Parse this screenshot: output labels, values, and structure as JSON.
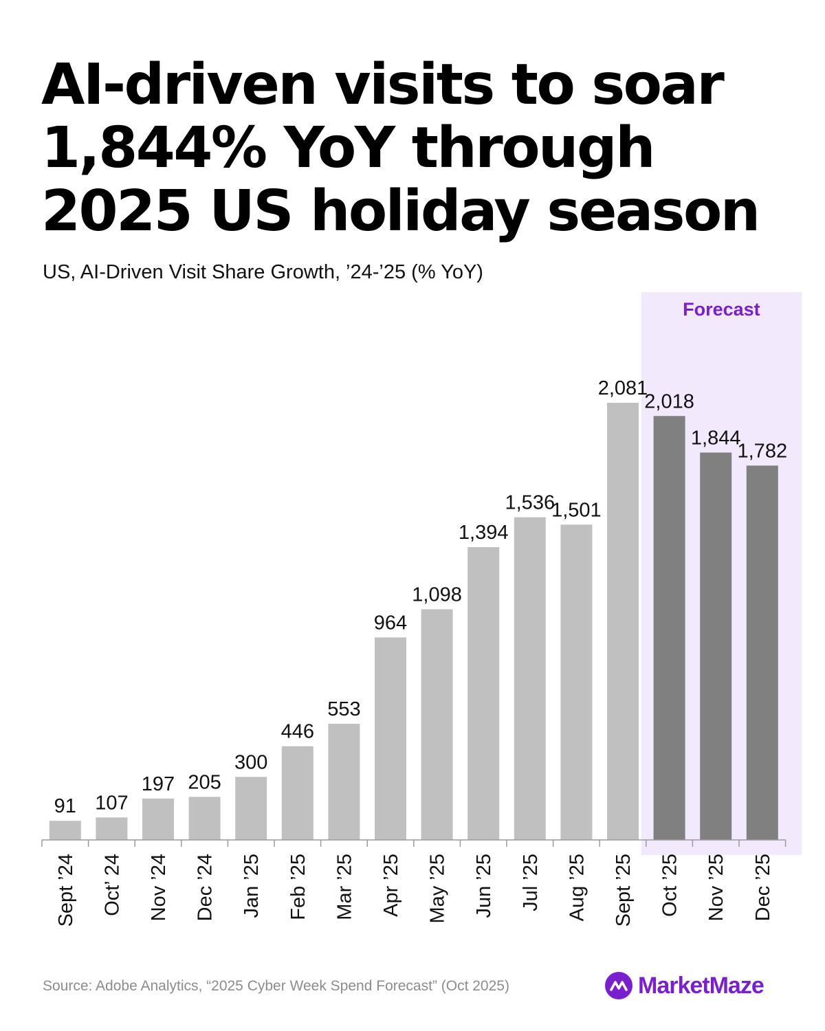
{
  "title_lines": [
    "AI-driven visits to soar",
    "1,844% YoY through",
    "2025 US holiday season"
  ],
  "subtitle": "US, AI-Driven Visit Share Growth, ’24-’25 (% YoY)",
  "source": "Source: Adobe Analytics, “2025 Cyber Week Spend Forecast” (Oct 2025)",
  "brand": {
    "name": "MarketMaze",
    "icon": "marketmaze-logo-icon"
  },
  "colors": {
    "actual_bar": "#c0c0c0",
    "forecast_bar": "#808080",
    "forecast_band": "#f2eafc",
    "forecast_label": "#7a1fd0",
    "brand": "#7a1fd0",
    "source_text": "#8c8c8c"
  },
  "chart_data": {
    "type": "bar",
    "categories": [
      "Sept ’24",
      "Oct’ 24",
      "Nov ’24",
      "Dec ’24",
      "Jan ’25",
      "Feb ’25",
      "Mar ’25",
      "Apr ’25",
      "May ’25",
      "Jun ’25",
      "Jul ’25",
      "Aug ’25",
      "Sept ’25",
      "Oct ’25",
      "Nov ’25",
      "Dec ’25"
    ],
    "values": [
      91,
      107,
      197,
      205,
      300,
      446,
      553,
      964,
      1098,
      1394,
      1536,
      1501,
      2081,
      2018,
      1844,
      1782
    ],
    "value_labels": [
      "91",
      "107",
      "197",
      "205",
      "300",
      "446",
      "553",
      "964",
      "1,098",
      "1,394",
      "1,536",
      "1,501",
      "2,081",
      "2,018",
      "1,844",
      "1,782"
    ],
    "forecast": [
      false,
      false,
      false,
      false,
      false,
      false,
      false,
      false,
      false,
      false,
      false,
      false,
      false,
      true,
      true,
      true
    ],
    "forecast_label": "Forecast",
    "ylim": [
      0,
      2081
    ],
    "grid": false,
    "xlabel": "",
    "ylabel": ""
  }
}
